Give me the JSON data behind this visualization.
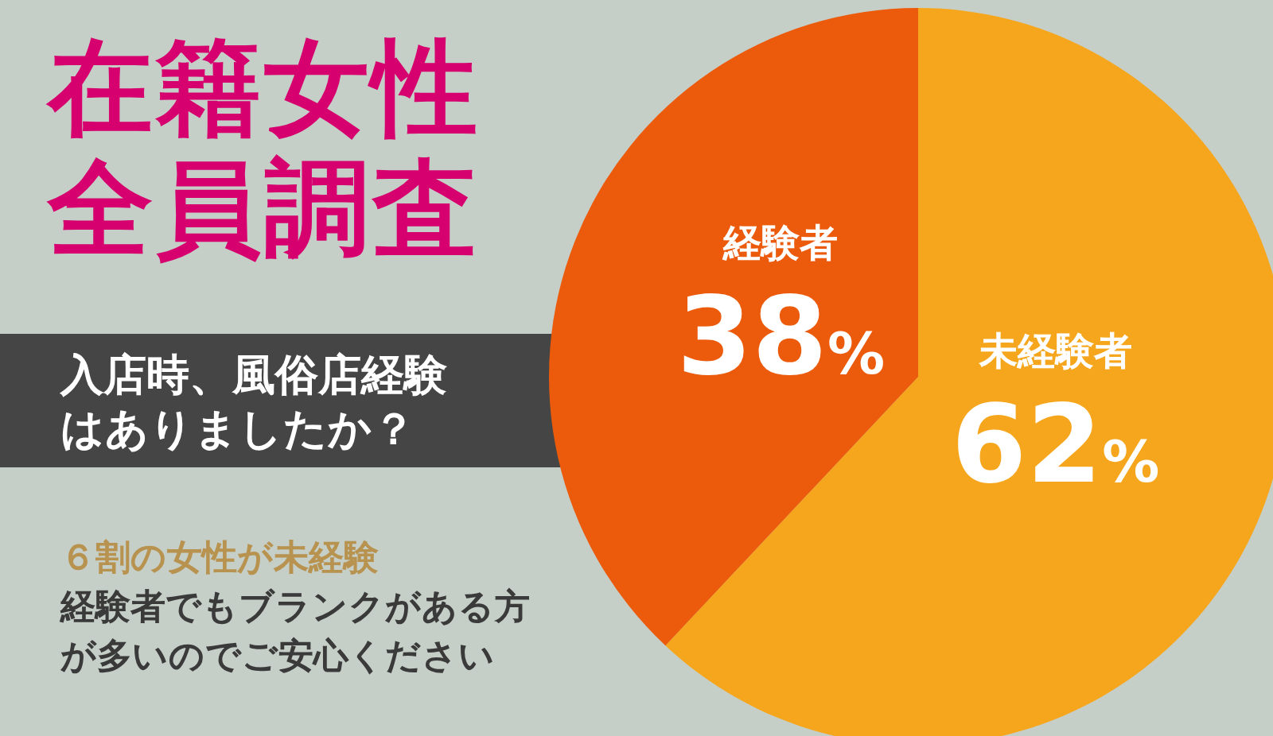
{
  "chart_data": {
    "type": "pie",
    "title": "在籍女性全員調査",
    "subtitle": "入店時、風俗店経験はありましたか？",
    "categories": [
      "未経験者",
      "経験者"
    ],
    "values": [
      62,
      38
    ],
    "colors": [
      "#f6a61c",
      "#ec5a0c"
    ],
    "value_labels": [
      "62%",
      "38%"
    ],
    "annotations": [
      "６割の女性が未経験",
      "経験者でもブランクがある方",
      "が多いのでご安心ください"
    ]
  }
}
